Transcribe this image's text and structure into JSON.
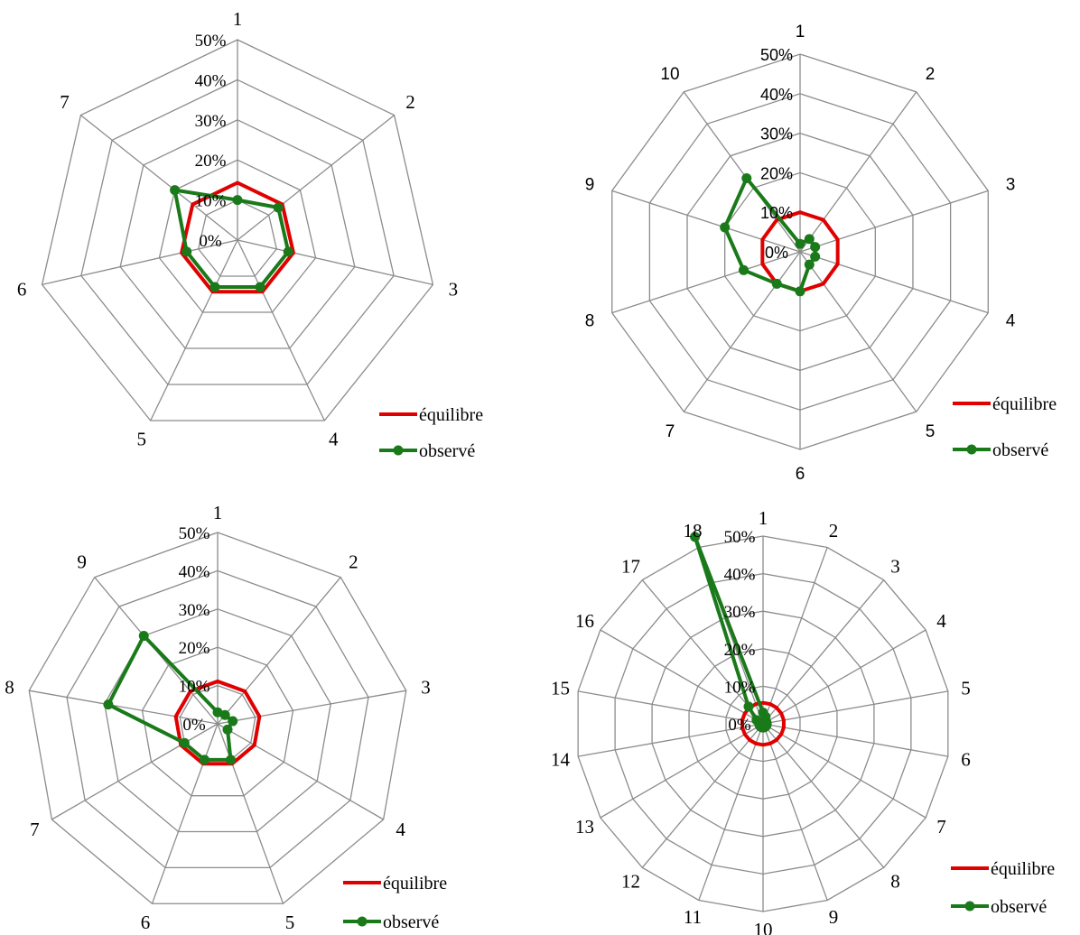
{
  "chart_data": [
    {
      "type": "radar",
      "categories": [
        "1",
        "2",
        "3",
        "4",
        "5",
        "6",
        "7"
      ],
      "r_ticks": [
        "0%",
        "10%",
        "20%",
        "30%",
        "40%",
        "50%"
      ],
      "rlim": [
        0,
        50
      ],
      "series": [
        {
          "name": "équilibre",
          "color": "#e00000",
          "values": [
            14.3,
            14.3,
            14.3,
            14.3,
            14.3,
            14.3,
            14.3
          ]
        },
        {
          "name": "observé",
          "color": "#1a7a1a",
          "marker": "circle",
          "values": [
            10.0,
            13.0,
            13.0,
            13.0,
            13.0,
            13.0,
            20.0
          ]
        }
      ],
      "legend": "bottom-right"
    },
    {
      "type": "radar",
      "categories": [
        "1",
        "2",
        "3",
        "4",
        "5",
        "6",
        "7",
        "8",
        "9",
        "10"
      ],
      "r_ticks": [
        "0%",
        "10%",
        "20%",
        "30%",
        "40%",
        "50%"
      ],
      "rlim": [
        0,
        50
      ],
      "series": [
        {
          "name": "équilibre",
          "color": "#e00000",
          "values": [
            10,
            10,
            10,
            10,
            10,
            10,
            10,
            10,
            10,
            10
          ]
        },
        {
          "name": "observé",
          "color": "#1a7a1a",
          "marker": "circle",
          "values": [
            2,
            4,
            4,
            4,
            4,
            10,
            10,
            15,
            20,
            23
          ]
        }
      ],
      "legend": "bottom-right"
    },
    {
      "type": "radar",
      "categories": [
        "1",
        "2",
        "3",
        "4",
        "5",
        "6",
        "7",
        "8",
        "9"
      ],
      "r_ticks": [
        "0%",
        "10%",
        "20%",
        "30%",
        "40%",
        "50%"
      ],
      "rlim": [
        0,
        50
      ],
      "series": [
        {
          "name": "équilibre",
          "color": "#e00000",
          "values": [
            11.1,
            11.1,
            11.1,
            11.1,
            11.1,
            11.1,
            11.1,
            11.1,
            11.1
          ]
        },
        {
          "name": "observé",
          "color": "#1a7a1a",
          "marker": "circle",
          "values": [
            3,
            3,
            4,
            3,
            10,
            10,
            10,
            29,
            30
          ]
        }
      ],
      "legend": "bottom-right"
    },
    {
      "type": "radar",
      "categories": [
        "1",
        "2",
        "3",
        "4",
        "5",
        "6",
        "7",
        "8",
        "9",
        "10",
        "11",
        "12",
        "13",
        "14",
        "15",
        "16",
        "17",
        "18"
      ],
      "r_ticks": [
        "0%",
        "10%",
        "20%",
        "30%",
        "40%",
        "50%"
      ],
      "rlim": [
        0,
        50
      ],
      "series": [
        {
          "name": "équilibre",
          "color": "#e00000",
          "values": [
            5.6,
            5.6,
            5.6,
            5.6,
            5.6,
            5.6,
            5.6,
            5.6,
            5.6,
            5.6,
            5.6,
            5.6,
            5.6,
            5.6,
            5.6,
            5.6,
            5.6,
            5.6
          ]
        },
        {
          "name": "observé",
          "color": "#1a7a1a",
          "marker": "circle",
          "values": [
            3,
            2,
            1,
            1,
            1,
            1,
            1,
            1,
            1,
            1,
            1,
            1,
            1,
            1,
            1,
            2,
            6,
            53
          ]
        }
      ],
      "legend": "bottom-right"
    }
  ]
}
